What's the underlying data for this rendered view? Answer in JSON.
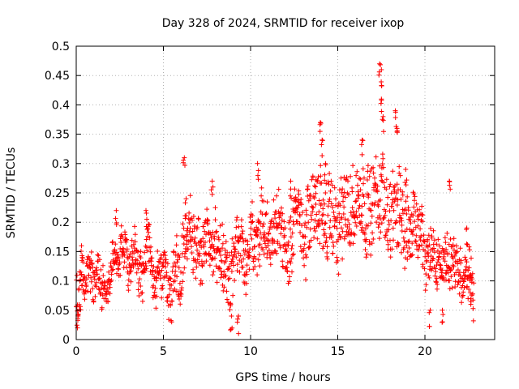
{
  "chart_data": {
    "type": "scatter",
    "title": "Day 328 of 2024, SRMTID for receiver ixop",
    "xlabel": "GPS time / hours",
    "ylabel": "SRMTID / TECUs",
    "xlim": [
      0,
      24
    ],
    "ylim": [
      0,
      0.5
    ],
    "xticks": [
      "0",
      "5",
      "10",
      "15",
      "20"
    ],
    "yticks": [
      "0",
      "0.05",
      "0.1",
      "0.15",
      "0.2",
      "0.25",
      "0.3",
      "0.35",
      "0.4",
      "0.45",
      "0.5"
    ],
    "grid": true,
    "marker": "plus",
    "color": "#ff0000",
    "data_extent_x": [
      0,
      22.8
    ],
    "trend": [
      [
        0.0,
        0.06
      ],
      [
        0.3,
        0.13
      ],
      [
        0.8,
        0.11
      ],
      [
        1.2,
        0.09
      ],
      [
        1.6,
        0.1
      ],
      [
        2.0,
        0.12
      ],
      [
        2.5,
        0.16
      ],
      [
        3.0,
        0.13
      ],
      [
        3.5,
        0.12
      ],
      [
        4.0,
        0.14
      ],
      [
        4.5,
        0.13
      ],
      [
        5.0,
        0.11
      ],
      [
        5.5,
        0.1
      ],
      [
        6.0,
        0.12
      ],
      [
        6.3,
        0.18
      ],
      [
        6.8,
        0.17
      ],
      [
        7.5,
        0.15
      ],
      [
        8.0,
        0.16
      ],
      [
        8.5,
        0.13
      ],
      [
        9.0,
        0.11
      ],
      [
        9.5,
        0.14
      ],
      [
        10.0,
        0.17
      ],
      [
        10.5,
        0.2
      ],
      [
        11.0,
        0.18
      ],
      [
        11.5,
        0.17
      ],
      [
        12.0,
        0.16
      ],
      [
        12.5,
        0.18
      ],
      [
        13.0,
        0.19
      ],
      [
        13.5,
        0.21
      ],
      [
        14.0,
        0.22
      ],
      [
        14.5,
        0.19
      ],
      [
        15.0,
        0.18
      ],
      [
        15.5,
        0.22
      ],
      [
        16.0,
        0.23
      ],
      [
        16.5,
        0.24
      ],
      [
        17.0,
        0.22
      ],
      [
        17.5,
        0.25
      ],
      [
        18.0,
        0.21
      ],
      [
        18.5,
        0.23
      ],
      [
        19.0,
        0.2
      ],
      [
        19.5,
        0.21
      ],
      [
        19.8,
        0.19
      ],
      [
        20.0,
        0.13
      ],
      [
        20.5,
        0.12
      ],
      [
        21.0,
        0.14
      ],
      [
        21.3,
        0.17
      ],
      [
        21.8,
        0.11
      ],
      [
        22.2,
        0.12
      ],
      [
        22.5,
        0.13
      ],
      [
        22.8,
        0.09
      ]
    ],
    "spread": [
      [
        0,
        0.04
      ],
      [
        5,
        0.04
      ],
      [
        6,
        0.06
      ],
      [
        10,
        0.06
      ],
      [
        14,
        0.08
      ],
      [
        18,
        0.09
      ],
      [
        20,
        0.05
      ],
      [
        22.8,
        0.05
      ]
    ],
    "spikes": [
      [
        0.1,
        0.04
      ],
      [
        0.3,
        0.16
      ],
      [
        2.3,
        0.22
      ],
      [
        4.0,
        0.22
      ],
      [
        6.2,
        0.31
      ],
      [
        6.3,
        0.24
      ],
      [
        7.8,
        0.27
      ],
      [
        8.9,
        0.04
      ],
      [
        9.3,
        0.04
      ],
      [
        10.4,
        0.3
      ],
      [
        12.3,
        0.27
      ],
      [
        14.0,
        0.37
      ],
      [
        14.1,
        0.34
      ],
      [
        14.3,
        0.3
      ],
      [
        16.4,
        0.34
      ],
      [
        17.4,
        0.47
      ],
      [
        17.5,
        0.46
      ],
      [
        17.5,
        0.41
      ],
      [
        17.6,
        0.38
      ],
      [
        18.3,
        0.39
      ],
      [
        18.4,
        0.36
      ],
      [
        18.9,
        0.29
      ],
      [
        20.3,
        0.05
      ],
      [
        21.4,
        0.27
      ],
      [
        21.0,
        0.05
      ],
      [
        22.4,
        0.19
      ],
      [
        22.6,
        0.08
      ]
    ],
    "point_count": 1500
  }
}
